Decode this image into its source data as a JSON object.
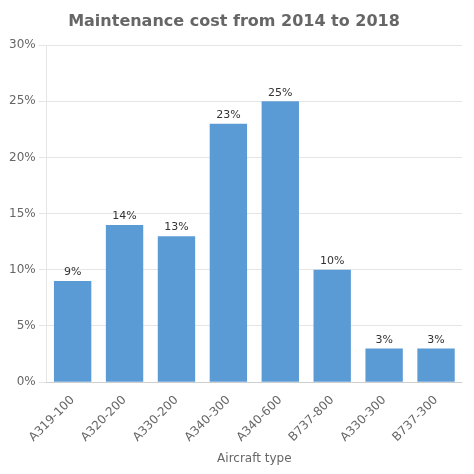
{
  "chart_data": {
    "type": "bar",
    "title": "Maintenance cost from 2014 to 2018",
    "xlabel": "Aircraft type",
    "categories": [
      "A319-100",
      "A320-200",
      "A330-200",
      "A340-300",
      "A340-600",
      "B737-800",
      "A330-300",
      "B737-300"
    ],
    "values": [
      9,
      14,
      13,
      23,
      25,
      10,
      3,
      3
    ],
    "value_labels": [
      "9%",
      "14%",
      "13%",
      "23%",
      "25%",
      "10%",
      "3%",
      "3%"
    ],
    "data_labels": true,
    "color": "#5b9bd5",
    "ylim": [
      0,
      30
    ],
    "yticks": [
      {
        "value": 0,
        "label": "0%"
      },
      {
        "value": 5,
        "label": "5%"
      },
      {
        "value": 10,
        "label": "10%"
      },
      {
        "value": 15,
        "label": "15%"
      },
      {
        "value": 20,
        "label": "20%"
      },
      {
        "value": 25,
        "label": "25%"
      },
      {
        "value": 30,
        "label": "30%"
      }
    ],
    "grid": true
  }
}
